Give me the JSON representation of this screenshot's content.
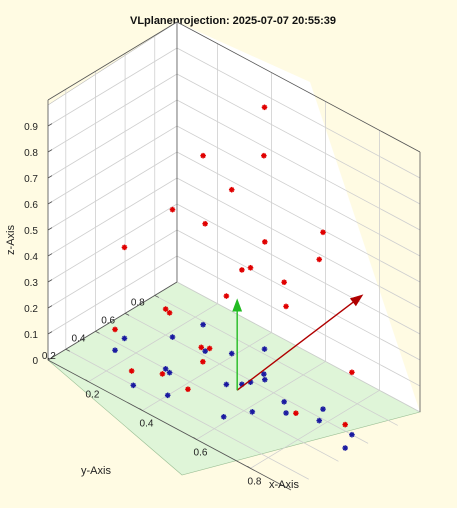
{
  "chart_data": {
    "type": "scatter3d",
    "title": "VLplaneprojection: 2025-07-07 20:55:39",
    "xlabel": "x-Axis",
    "ylabel": "y-Axis",
    "zlabel": "z-Axis",
    "xlim": [
      0.05,
      0.95
    ],
    "ylim": [
      0.08,
      0.95
    ],
    "zlim": [
      0,
      1
    ],
    "xticks": [
      "0.2",
      "0.4",
      "0.6",
      "0.8"
    ],
    "xtick_values": [
      0.2,
      0.4,
      0.6,
      0.8
    ],
    "yticks": [
      "0.2",
      "0.4",
      "0.6",
      "0.8"
    ],
    "ytick_values": [
      0.2,
      0.4,
      0.6,
      0.8
    ],
    "zticks": [
      "0",
      "0.1",
      "0.2",
      "0.3",
      "0.4",
      "0.5",
      "0.6",
      "0.7",
      "0.8",
      "0.9"
    ],
    "ztick_values": [
      0,
      0.1,
      0.2,
      0.3,
      0.4,
      0.5,
      0.6,
      0.7,
      0.8,
      0.9
    ],
    "grid": true,
    "plane": {
      "z": 0,
      "color": "#dff5d8"
    },
    "colors": {
      "background": "#fffbe3",
      "points": "#e00000",
      "projections": "#1a1aa0",
      "normal_vector": "#22bb22",
      "direction_vector": "#b00000"
    },
    "series": [
      {
        "marker": "red-asterisk",
        "points": [
          [
            0.44,
            0.83,
            0.93
          ],
          [
            0.52,
            0.68,
            0.84
          ],
          [
            0.75,
            0.66,
            0.68
          ],
          [
            0.78,
            0.58,
            0.62
          ],
          [
            0.24,
            0.78,
            0.65
          ],
          [
            0.39,
            0.7,
            0.63
          ],
          [
            0.22,
            0.61,
            0.49
          ],
          [
            0.33,
            0.63,
            0.49
          ],
          [
            0.54,
            0.65,
            0.53
          ],
          [
            0.52,
            0.59,
            0.44
          ],
          [
            0.51,
            0.55,
            0.44
          ],
          [
            0.65,
            0.58,
            0.46
          ],
          [
            0.13,
            0.45,
            0.35
          ],
          [
            0.48,
            0.5,
            0.34
          ],
          [
            0.69,
            0.52,
            0.41
          ],
          [
            0.31,
            0.4,
            0.23
          ],
          [
            0.33,
            0.39,
            0.23
          ],
          [
            0.89,
            0.6,
            0.24
          ],
          [
            0.15,
            0.35,
            0.08
          ],
          [
            0.92,
            0.5,
            0.09
          ]
        ]
      },
      {
        "marker": "blue-asterisk",
        "points": [
          [
            0.44,
            0.83,
            0
          ],
          [
            0.52,
            0.68,
            0
          ],
          [
            0.75,
            0.66,
            0
          ],
          [
            0.78,
            0.58,
            0
          ],
          [
            0.24,
            0.78,
            0
          ],
          [
            0.39,
            0.7,
            0
          ],
          [
            0.22,
            0.61,
            0
          ],
          [
            0.33,
            0.63,
            0
          ],
          [
            0.54,
            0.65,
            0
          ],
          [
            0.52,
            0.59,
            0
          ],
          [
            0.51,
            0.55,
            0
          ],
          [
            0.65,
            0.58,
            0
          ],
          [
            0.13,
            0.45,
            0
          ],
          [
            0.48,
            0.5,
            0
          ],
          [
            0.69,
            0.52,
            0
          ],
          [
            0.31,
            0.4,
            0
          ],
          [
            0.33,
            0.39,
            0
          ],
          [
            0.89,
            0.6,
            0
          ],
          [
            0.15,
            0.35,
            0
          ],
          [
            0.92,
            0.5,
            0
          ],
          [
            0.58,
            0.3,
            0
          ],
          [
            0.62,
            0.42,
            0
          ],
          [
            0.4,
            0.25,
            0
          ],
          [
            0.3,
            0.2,
            0
          ]
        ]
      },
      {
        "marker": "red-asterisk",
        "points": [
          [
            0.33,
            0.66,
            0
          ],
          [
            0.31,
            0.64,
            0
          ],
          [
            0.36,
            0.56,
            0
          ],
          [
            0.71,
            0.55,
            0
          ],
          [
            0.42,
            0.35,
            0
          ],
          [
            0.25,
            0.28,
            0
          ],
          [
            0.32,
            0.36,
            0
          ]
        ]
      }
    ],
    "vectors": [
      {
        "color": "green",
        "from": [
          0.52,
          0.5,
          0
        ],
        "to": [
          0.52,
          0.5,
          0.35
        ]
      },
      {
        "color": "darkred",
        "from": [
          0.52,
          0.5,
          0
        ],
        "to": [
          0.93,
          0.6,
          0.56
        ]
      }
    ]
  }
}
